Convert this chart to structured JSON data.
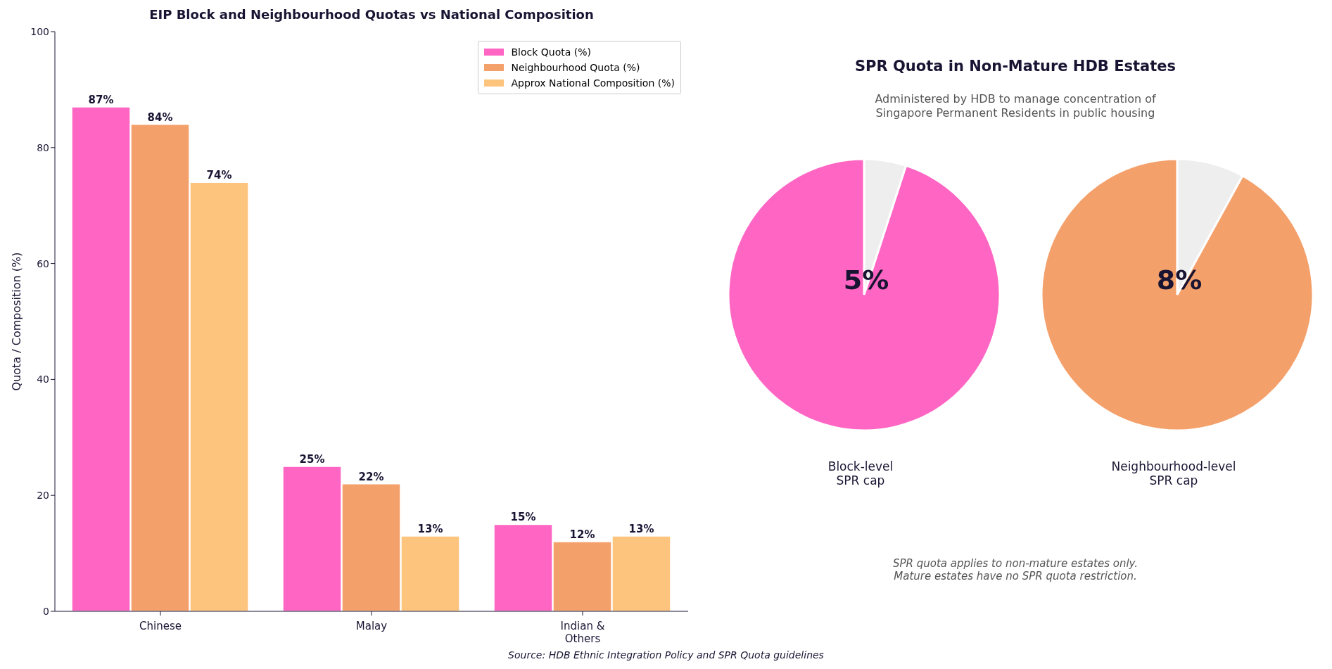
{
  "chart_data": [
    {
      "type": "bar",
      "title": "EIP Block and Neighbourhood Quotas vs National Composition",
      "ylabel": "Quota / Composition (%)",
      "categories": [
        "Chinese",
        "Malay",
        "Indian &\nOthers"
      ],
      "series": [
        {
          "name": "Block Quota (%)",
          "color": "#ff66c4",
          "values": [
            87,
            25,
            15
          ],
          "value_labels": [
            "87%",
            "25%",
            "15%"
          ]
        },
        {
          "name": "Neighbourhood Quota (%)",
          "color": "#f4a06b",
          "values": [
            84,
            22,
            12
          ],
          "value_labels": [
            "84%",
            "22%",
            "12%"
          ]
        },
        {
          "name": "Approx National Composition (%)",
          "color": "#fdc47d",
          "values": [
            74,
            13,
            13
          ],
          "value_labels": [
            "74%",
            "13%",
            "13%"
          ]
        }
      ],
      "ylim": [
        0,
        100
      ],
      "yticks": [
        0,
        20,
        40,
        60,
        80,
        100
      ],
      "grid": false,
      "legend": "top right",
      "annotations": [
        "Source: HDB Ethnic Integration Policy and SPR Quota guidelines"
      ]
    },
    {
      "type": "pie",
      "title": "SPR Quota in Non-Mature HDB Estates",
      "subtitle": "Administered by HDB to manage concentration of\nSingapore Permanent Residents in public housing",
      "xlabel": "Block-level\nSPR cap",
      "categories": [
        null,
        null
      ],
      "values": [
        5,
        95
      ],
      "colors": [
        "#eeeeee",
        "#ff66c4"
      ],
      "value_labels": [
        "5%",
        null
      ]
    },
    {
      "type": "pie",
      "xlabel": "Neighbourhood-level\nSPR cap",
      "categories": [
        null,
        null
      ],
      "values": [
        8,
        92
      ],
      "colors": [
        "#eeeeee",
        "#f4a06b"
      ],
      "value_labels": [
        "8%",
        null
      ],
      "annotations": [
        "SPR quota applies to non-mature estates only.\nMature estates have no SPR quota restriction."
      ]
    }
  ]
}
